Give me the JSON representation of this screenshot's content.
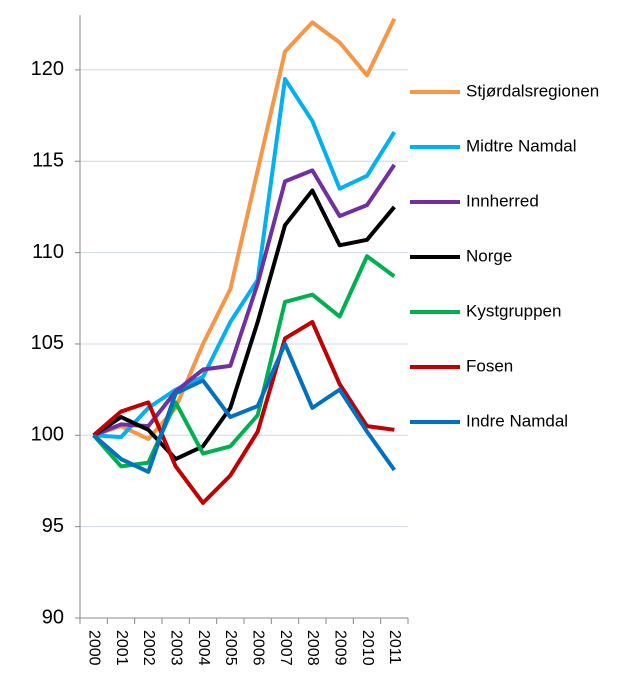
{
  "chart_data": {
    "type": "line",
    "categories": [
      "2000",
      "2001",
      "2002",
      "2003",
      "2004",
      "2005",
      "2006",
      "2007",
      "2008",
      "2009",
      "2010",
      "2011"
    ],
    "series": [
      {
        "name": "Stjørdalsregionen",
        "color": "#f79646",
        "values": [
          100,
          100.5,
          99.8,
          101.5,
          105,
          108,
          114.5,
          121,
          122.6,
          121.5,
          119.7,
          122.8
        ]
      },
      {
        "name": "Midtre Namdal",
        "color": "#00b0f0",
        "values": [
          100,
          99.9,
          101.5,
          102.5,
          103.2,
          106.2,
          108.5,
          119.5,
          117.2,
          113.5,
          114.2,
          116.6
        ]
      },
      {
        "name": "Innherred",
        "color": "#7030a0",
        "values": [
          100,
          100.6,
          100.5,
          102.4,
          103.6,
          103.8,
          108.3,
          113.9,
          114.5,
          112,
          112.6,
          114.8
        ]
      },
      {
        "name": "Norge",
        "color": "#000000",
        "values": [
          100,
          101,
          100.3,
          98.7,
          99.4,
          101.5,
          106.2,
          111.5,
          113.4,
          110.4,
          110.7,
          112.5
        ]
      },
      {
        "name": "Kystgruppen",
        "color": "#00b050",
        "values": [
          100,
          98.3,
          98.5,
          101.8,
          99,
          99.4,
          101.1,
          107.3,
          107.7,
          106.5,
          109.8,
          108.7
        ]
      },
      {
        "name": "Fosen",
        "color": "#c00000",
        "values": [
          100,
          101.3,
          101.8,
          98.3,
          96.3,
          97.8,
          100.2,
          105.3,
          106.2,
          102.8,
          100.5,
          100.3
        ]
      },
      {
        "name": "Indre Namdal",
        "color": "#0070c0",
        "values": [
          100,
          98.7,
          98,
          102.3,
          103,
          101,
          101.6,
          105,
          101.5,
          102.5,
          100.2,
          98.1
        ]
      }
    ],
    "ylim": [
      90,
      123
    ],
    "yticks": [
      90,
      95,
      100,
      105,
      110,
      115,
      120
    ],
    "grid": true,
    "legend": "right"
  }
}
